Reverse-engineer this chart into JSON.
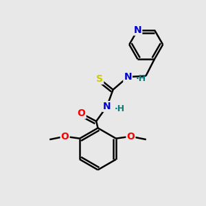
{
  "background_color": "#e8e8e8",
  "bond_color": "black",
  "atom_colors": {
    "N": "#0000cc",
    "O": "#ff0000",
    "S": "#cccc00",
    "H_label": "#008080",
    "C": "black"
  },
  "bond_width": 1.8,
  "figsize": [
    3.0,
    3.0
  ],
  "dpi": 100
}
